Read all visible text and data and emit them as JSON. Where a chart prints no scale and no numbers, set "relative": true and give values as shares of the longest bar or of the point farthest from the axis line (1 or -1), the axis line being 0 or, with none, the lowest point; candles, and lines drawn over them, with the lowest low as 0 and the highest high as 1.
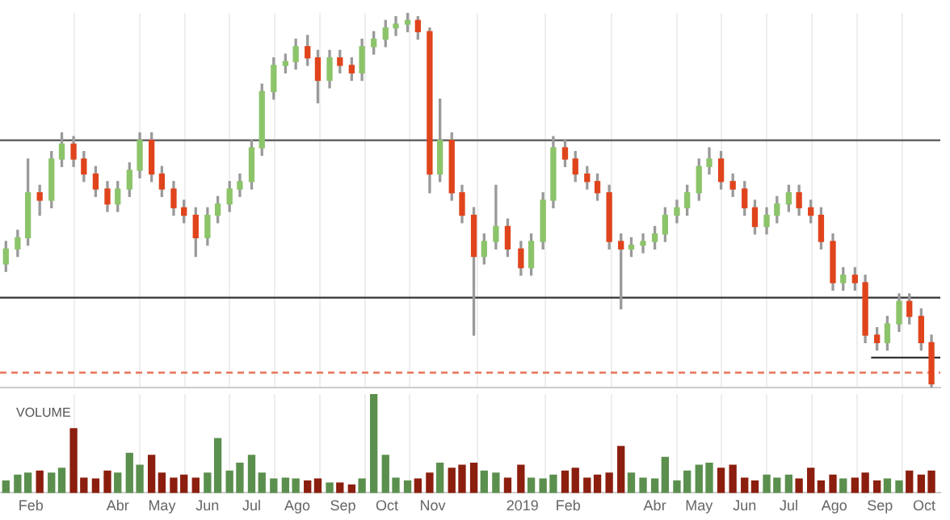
{
  "chart_data": [
    {
      "type": "candlestick",
      "relative": true,
      "tick_labels": false,
      "grid": "x",
      "xlim": [
        "2018-01-11",
        "2019-10-12"
      ],
      "xticks": [
        {
          "value": "2018-02-01",
          "label": null
        },
        {
          "value": "2018-04-01",
          "label": null
        },
        {
          "value": "2018-05-01",
          "label": null
        },
        {
          "value": "2018-06-01",
          "label": null
        },
        {
          "value": "2018-07-01",
          "label": null
        },
        {
          "value": "2018-08-01",
          "label": null
        },
        {
          "value": "2018-09-01",
          "label": null
        },
        {
          "value": "2018-10-01",
          "label": null
        },
        {
          "value": "2018-11-01",
          "label": null
        },
        {
          "value": "2019-01-01",
          "label": null
        },
        {
          "value": "2019-02-01",
          "label": null
        },
        {
          "value": "2019-04-01",
          "label": null
        },
        {
          "value": "2019-05-01",
          "label": null
        },
        {
          "value": "2019-06-01",
          "label": null
        },
        {
          "value": "2019-07-01",
          "label": null
        },
        {
          "value": "2019-08-01",
          "label": null
        },
        {
          "value": "2019-09-01",
          "label": null
        },
        {
          "value": "2019-10-01",
          "label": null
        }
      ],
      "x": [
        "2018-01-15",
        "2018-01-23",
        "2018-01-30",
        "2018-02-07",
        "2018-02-15",
        "2018-02-22",
        "2018-03-02",
        "2018-03-09",
        "2018-03-17",
        "2018-03-25",
        "2018-04-01",
        "2018-04-09",
        "2018-04-16",
        "2018-04-24",
        "2018-05-01",
        "2018-05-09",
        "2018-05-16",
        "2018-05-24",
        "2018-06-01",
        "2018-06-08",
        "2018-06-16",
        "2018-06-23",
        "2018-07-01",
        "2018-07-08",
        "2018-07-16",
        "2018-07-24",
        "2018-07-31",
        "2018-08-08",
        "2018-08-15",
        "2018-08-23",
        "2018-08-30",
        "2018-09-07",
        "2018-09-14",
        "2018-09-22",
        "2018-09-30",
        "2018-10-07",
        "2018-10-15",
        "2018-10-22",
        "2018-10-30",
        "2018-11-06",
        "2018-11-14",
        "2018-11-21",
        "2018-11-29",
        "2018-12-06",
        "2018-12-14",
        "2018-12-22",
        "2018-12-31",
        "2019-01-07",
        "2019-01-15",
        "2019-01-22",
        "2019-01-30",
        "2019-02-06",
        "2019-02-14",
        "2019-02-21",
        "2019-03-01",
        "2019-03-09",
        "2019-03-16",
        "2019-03-24",
        "2019-04-01",
        "2019-04-08",
        "2019-04-16",
        "2019-04-23",
        "2019-05-01",
        "2019-05-08",
        "2019-05-16",
        "2019-05-24",
        "2019-06-01",
        "2019-06-08",
        "2019-06-16",
        "2019-06-23",
        "2019-07-01",
        "2019-07-08",
        "2019-07-16",
        "2019-07-23",
        "2019-07-31",
        "2019-08-07",
        "2019-08-15",
        "2019-08-22",
        "2019-08-30",
        "2019-09-06",
        "2019-09-14",
        "2019-09-21",
        "2019-09-29",
        "2019-10-06"
      ],
      "ohlc": [
        [
          0.33,
          0.39,
          0.31,
          0.37
        ],
        [
          0.37,
          0.42,
          0.35,
          0.4
        ],
        [
          0.4,
          0.61,
          0.38,
          0.52
        ],
        [
          0.52,
          0.54,
          0.46,
          0.5
        ],
        [
          0.5,
          0.63,
          0.48,
          0.61
        ],
        [
          0.61,
          0.68,
          0.59,
          0.65
        ],
        [
          0.65,
          0.67,
          0.59,
          0.61
        ],
        [
          0.61,
          0.63,
          0.55,
          0.57
        ],
        [
          0.57,
          0.59,
          0.51,
          0.53
        ],
        [
          0.53,
          0.55,
          0.47,
          0.49
        ],
        [
          0.49,
          0.55,
          0.47,
          0.53
        ],
        [
          0.53,
          0.6,
          0.51,
          0.58
        ],
        [
          0.58,
          0.68,
          0.56,
          0.66
        ],
        [
          0.66,
          0.68,
          0.55,
          0.57
        ],
        [
          0.57,
          0.59,
          0.51,
          0.53
        ],
        [
          0.53,
          0.55,
          0.46,
          0.48
        ],
        [
          0.48,
          0.5,
          0.44,
          0.46
        ],
        [
          0.46,
          0.48,
          0.35,
          0.4
        ],
        [
          0.4,
          0.48,
          0.38,
          0.46
        ],
        [
          0.46,
          0.51,
          0.44,
          0.49
        ],
        [
          0.49,
          0.55,
          0.47,
          0.53
        ],
        [
          0.53,
          0.57,
          0.51,
          0.55
        ],
        [
          0.55,
          0.66,
          0.53,
          0.64
        ],
        [
          0.64,
          0.81,
          0.62,
          0.79
        ],
        [
          0.79,
          0.88,
          0.77,
          0.86
        ],
        [
          0.86,
          0.89,
          0.84,
          0.87
        ],
        [
          0.87,
          0.93,
          0.85,
          0.91
        ],
        [
          0.91,
          0.94,
          0.86,
          0.88
        ],
        [
          0.88,
          0.9,
          0.76,
          0.82
        ],
        [
          0.82,
          0.9,
          0.8,
          0.88
        ],
        [
          0.88,
          0.9,
          0.84,
          0.86
        ],
        [
          0.86,
          0.88,
          0.82,
          0.84
        ],
        [
          0.84,
          0.93,
          0.82,
          0.91
        ],
        [
          0.91,
          0.95,
          0.89,
          0.93
        ],
        [
          0.93,
          0.98,
          0.91,
          0.96
        ],
        [
          0.96,
          0.99,
          0.94,
          0.97
        ],
        [
          0.97,
          1,
          0.95,
          0.98
        ],
        [
          0.98,
          0.99,
          0.93,
          0.95
        ],
        [
          0.95,
          0.96,
          0.52,
          0.57
        ],
        [
          0.57,
          0.77,
          0.55,
          0.66
        ],
        [
          0.66,
          0.68,
          0.5,
          0.52
        ],
        [
          0.52,
          0.54,
          0.44,
          0.46
        ],
        [
          0.46,
          0.48,
          0.14,
          0.35
        ],
        [
          0.35,
          0.41,
          0.33,
          0.39
        ],
        [
          0.39,
          0.54,
          0.37,
          0.43
        ],
        [
          0.43,
          0.45,
          0.35,
          0.37
        ],
        [
          0.37,
          0.39,
          0.3,
          0.32
        ],
        [
          0.32,
          0.41,
          0.3,
          0.39
        ],
        [
          0.39,
          0.52,
          0.37,
          0.5
        ],
        [
          0.5,
          0.67,
          0.48,
          0.64
        ],
        [
          0.64,
          0.66,
          0.59,
          0.61
        ],
        [
          0.61,
          0.63,
          0.55,
          0.57
        ],
        [
          0.57,
          0.59,
          0.53,
          0.55
        ],
        [
          0.55,
          0.57,
          0.5,
          0.52
        ],
        [
          0.52,
          0.54,
          0.37,
          0.39
        ],
        [
          0.39,
          0.41,
          0.21,
          0.37
        ],
        [
          0.37,
          0.4,
          0.35,
          0.38
        ],
        [
          0.38,
          0.41,
          0.36,
          0.39
        ],
        [
          0.39,
          0.43,
          0.37,
          0.41
        ],
        [
          0.41,
          0.48,
          0.39,
          0.46
        ],
        [
          0.46,
          0.5,
          0.44,
          0.48
        ],
        [
          0.48,
          0.54,
          0.46,
          0.52
        ],
        [
          0.52,
          0.61,
          0.5,
          0.59
        ],
        [
          0.59,
          0.64,
          0.57,
          0.61
        ],
        [
          0.61,
          0.63,
          0.53,
          0.55
        ],
        [
          0.55,
          0.57,
          0.51,
          0.53
        ],
        [
          0.53,
          0.55,
          0.46,
          0.48
        ],
        [
          0.48,
          0.5,
          0.41,
          0.43
        ],
        [
          0.43,
          0.48,
          0.41,
          0.46
        ],
        [
          0.46,
          0.51,
          0.44,
          0.49
        ],
        [
          0.49,
          0.54,
          0.47,
          0.52
        ],
        [
          0.52,
          0.54,
          0.46,
          0.48
        ],
        [
          0.48,
          0.5,
          0.44,
          0.46
        ],
        [
          0.46,
          0.48,
          0.37,
          0.39
        ],
        [
          0.39,
          0.41,
          0.26,
          0.28
        ],
        [
          0.28,
          0.32,
          0.26,
          0.3
        ],
        [
          0.3,
          0.32,
          0.26,
          0.28
        ],
        [
          0.28,
          0.3,
          0.12,
          0.14
        ],
        [
          0.14,
          0.16,
          0.1,
          0.12
        ],
        [
          0.12,
          0.19,
          0.1,
          0.17
        ],
        [
          0.17,
          0.25,
          0.15,
          0.23
        ],
        [
          0.23,
          0.25,
          0.17,
          0.19
        ],
        [
          0.19,
          0.21,
          0.1,
          0.12
        ],
        [
          0.12,
          0.14,
          0,
          0.01
        ]
      ],
      "colors": [
        "#8cc46a",
        "#8cc46a",
        "#8cc46a",
        "#e0441c",
        "#8cc46a",
        "#8cc46a",
        "#e0441c",
        "#e0441c",
        "#e0441c",
        "#e0441c",
        "#8cc46a",
        "#8cc46a",
        "#8cc46a",
        "#e0441c",
        "#e0441c",
        "#e0441c",
        "#e0441c",
        "#e0441c",
        "#8cc46a",
        "#8cc46a",
        "#8cc46a",
        "#8cc46a",
        "#8cc46a",
        "#8cc46a",
        "#8cc46a",
        "#8cc46a",
        "#8cc46a",
        "#e0441c",
        "#e0441c",
        "#8cc46a",
        "#e0441c",
        "#e0441c",
        "#8cc46a",
        "#8cc46a",
        "#8cc46a",
        "#8cc46a",
        "#8cc46a",
        "#e0441c",
        "#e0441c",
        "#8cc46a",
        "#e0441c",
        "#e0441c",
        "#e0441c",
        "#8cc46a",
        "#8cc46a",
        "#e0441c",
        "#e0441c",
        "#8cc46a",
        "#8cc46a",
        "#8cc46a",
        "#e0441c",
        "#e0441c",
        "#e0441c",
        "#e0441c",
        "#e0441c",
        "#e0441c",
        "#8cc46a",
        "#8cc46a",
        "#8cc46a",
        "#8cc46a",
        "#8cc46a",
        "#8cc46a",
        "#8cc46a",
        "#8cc46a",
        "#e0441c",
        "#e0441c",
        "#e0441c",
        "#e0441c",
        "#8cc46a",
        "#8cc46a",
        "#8cc46a",
        "#e0441c",
        "#e0441c",
        "#e0441c",
        "#e0441c",
        "#8cc46a",
        "#e0441c",
        "#e0441c",
        "#e0441c",
        "#8cc46a",
        "#8cc46a",
        "#e0441c",
        "#e0441c",
        "#e0441c"
      ],
      "series": [
        {
          "type": "line",
          "x": [
            "2019-08-26",
            "2019-10-12"
          ],
          "values": [
            0.08,
            0.08
          ],
          "color": "#333333"
        }
      ],
      "ref_lines": [
        {
          "axis": "y",
          "value": 0.66,
          "color": "#666666"
        },
        {
          "axis": "y",
          "value": 0.24,
          "color": "#333333"
        },
        {
          "axis": "y",
          "value": 0.04,
          "color": "#e8745a",
          "line_style": "dashed"
        }
      ]
    },
    {
      "type": "bar",
      "title": "VOLUME",
      "relative": true,
      "tick_labels": "x",
      "grid": "x",
      "xlim": [
        "2018-01-11",
        "2019-10-12"
      ],
      "xticks": [
        {
          "value": "2018-02-01",
          "label": "Feb"
        },
        {
          "value": "2018-04-01",
          "label": "Abr"
        },
        {
          "value": "2018-05-01",
          "label": "May"
        },
        {
          "value": "2018-06-01",
          "label": "Jun"
        },
        {
          "value": "2018-07-01",
          "label": "Jul"
        },
        {
          "value": "2018-08-01",
          "label": "Ago"
        },
        {
          "value": "2018-09-01",
          "label": "Sep"
        },
        {
          "value": "2018-10-01",
          "label": "Oct"
        },
        {
          "value": "2018-11-01",
          "label": "Nov"
        },
        {
          "value": "2019-01-01",
          "label": "2019"
        },
        {
          "value": "2019-02-01",
          "label": "Feb"
        },
        {
          "value": "2019-04-01",
          "label": "Abr"
        },
        {
          "value": "2019-05-01",
          "label": "May"
        },
        {
          "value": "2019-06-01",
          "label": "Jun"
        },
        {
          "value": "2019-07-01",
          "label": "Jul"
        },
        {
          "value": "2019-08-01",
          "label": "Ago"
        },
        {
          "value": "2019-09-01",
          "label": "Sep"
        },
        {
          "value": "2019-10-01",
          "label": "Oct"
        }
      ],
      "x": [
        "2018-01-15",
        "2018-01-23",
        "2018-01-30",
        "2018-02-07",
        "2018-02-15",
        "2018-02-22",
        "2018-03-02",
        "2018-03-09",
        "2018-03-17",
        "2018-03-25",
        "2018-04-01",
        "2018-04-09",
        "2018-04-16",
        "2018-04-24",
        "2018-05-01",
        "2018-05-09",
        "2018-05-16",
        "2018-05-24",
        "2018-06-01",
        "2018-06-08",
        "2018-06-16",
        "2018-06-23",
        "2018-07-01",
        "2018-07-08",
        "2018-07-16",
        "2018-07-24",
        "2018-07-31",
        "2018-08-08",
        "2018-08-15",
        "2018-08-23",
        "2018-08-30",
        "2018-09-07",
        "2018-09-14",
        "2018-09-22",
        "2018-09-30",
        "2018-10-07",
        "2018-10-15",
        "2018-10-22",
        "2018-10-30",
        "2018-11-06",
        "2018-11-14",
        "2018-11-21",
        "2018-11-29",
        "2018-12-06",
        "2018-12-14",
        "2018-12-22",
        "2018-12-31",
        "2019-01-07",
        "2019-01-15",
        "2019-01-22",
        "2019-01-30",
        "2019-02-06",
        "2019-02-14",
        "2019-02-21",
        "2019-03-01",
        "2019-03-09",
        "2019-03-16",
        "2019-03-24",
        "2019-04-01",
        "2019-04-08",
        "2019-04-16",
        "2019-04-23",
        "2019-05-01",
        "2019-05-08",
        "2019-05-16",
        "2019-05-24",
        "2019-06-01",
        "2019-06-08",
        "2019-06-16",
        "2019-06-23",
        "2019-07-01",
        "2019-07-08",
        "2019-07-16",
        "2019-07-23",
        "2019-07-31",
        "2019-08-07",
        "2019-08-15",
        "2019-08-22",
        "2019-08-30",
        "2019-09-06",
        "2019-09-14",
        "2019-09-21",
        "2019-09-29",
        "2019-10-06"
      ],
      "values": [
        0.12,
        0.18,
        0.2,
        0.22,
        0.2,
        0.25,
        0.65,
        0.15,
        0.14,
        0.22,
        0.2,
        0.4,
        0.28,
        0.38,
        0.2,
        0.15,
        0.18,
        0.15,
        0.2,
        0.55,
        0.22,
        0.3,
        0.38,
        0.2,
        0.14,
        0.15,
        0.14,
        0.12,
        0.14,
        0.1,
        0.1,
        0.08,
        0.14,
        1,
        0.38,
        0.15,
        0.12,
        0.14,
        0.2,
        0.3,
        0.25,
        0.28,
        0.3,
        0.22,
        0.2,
        0.15,
        0.28,
        0.15,
        0.14,
        0.18,
        0.22,
        0.25,
        0.15,
        0.18,
        0.2,
        0.47,
        0.2,
        0.15,
        0.14,
        0.36,
        0.12,
        0.22,
        0.28,
        0.3,
        0.25,
        0.28,
        0.15,
        0.12,
        0.18,
        0.15,
        0.18,
        0.14,
        0.25,
        0.12,
        0.18,
        0.14,
        0.15,
        0.2,
        0.12,
        0.14,
        0.12,
        0.22,
        0.18,
        0.22
      ],
      "colors": [
        "#5b8f4e",
        "#5b8f4e",
        "#5b8f4e",
        "#8b1e0e",
        "#5b8f4e",
        "#5b8f4e",
        "#8b1e0e",
        "#8b1e0e",
        "#8b1e0e",
        "#8b1e0e",
        "#5b8f4e",
        "#5b8f4e",
        "#5b8f4e",
        "#8b1e0e",
        "#8b1e0e",
        "#8b1e0e",
        "#8b1e0e",
        "#8b1e0e",
        "#5b8f4e",
        "#5b8f4e",
        "#5b8f4e",
        "#5b8f4e",
        "#5b8f4e",
        "#5b8f4e",
        "#5b8f4e",
        "#5b8f4e",
        "#5b8f4e",
        "#8b1e0e",
        "#8b1e0e",
        "#5b8f4e",
        "#8b1e0e",
        "#8b1e0e",
        "#5b8f4e",
        "#5b8f4e",
        "#5b8f4e",
        "#5b8f4e",
        "#5b8f4e",
        "#8b1e0e",
        "#8b1e0e",
        "#5b8f4e",
        "#8b1e0e",
        "#8b1e0e",
        "#8b1e0e",
        "#5b8f4e",
        "#5b8f4e",
        "#8b1e0e",
        "#8b1e0e",
        "#5b8f4e",
        "#5b8f4e",
        "#5b8f4e",
        "#8b1e0e",
        "#8b1e0e",
        "#8b1e0e",
        "#8b1e0e",
        "#8b1e0e",
        "#8b1e0e",
        "#5b8f4e",
        "#5b8f4e",
        "#5b8f4e",
        "#5b8f4e",
        "#5b8f4e",
        "#5b8f4e",
        "#5b8f4e",
        "#5b8f4e",
        "#8b1e0e",
        "#8b1e0e",
        "#8b1e0e",
        "#8b1e0e",
        "#5b8f4e",
        "#5b8f4e",
        "#5b8f4e",
        "#8b1e0e",
        "#8b1e0e",
        "#8b1e0e",
        "#8b1e0e",
        "#5b8f4e",
        "#8b1e0e",
        "#8b1e0e",
        "#8b1e0e",
        "#5b8f4e",
        "#5b8f4e",
        "#8b1e0e",
        "#8b1e0e",
        "#8b1e0e"
      ]
    }
  ]
}
